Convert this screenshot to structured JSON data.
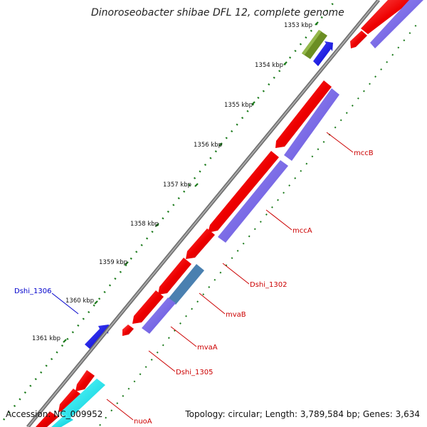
{
  "title": "Dinoroseobacter shibae DFL 12, complete genome",
  "footer": {
    "accession": "Accession: NC_009952",
    "summary": "Topology: circular; Length: 3,789,584 bp; Genes: 3,634"
  },
  "ticks": [
    "1353 kbp",
    "1354 kbp",
    "1355 kbp",
    "1356 kbp",
    "1357 kbp",
    "1358 kbp",
    "1359 kbp",
    "1360 kbp",
    "1361 kbp"
  ],
  "genes": [
    "mccB",
    "mccA",
    "Dshi_1302",
    "mvaB",
    "mvaA",
    "Dshi_1305",
    "nuoA",
    "Dshi_1306"
  ],
  "colors": {
    "backbone": "#808080",
    "forward_cds": "#0000ff",
    "reverse_cds": "#ff0000",
    "gene_track": "#7b68ee",
    "tick_marks": "#1a7a1a",
    "label_red": "#cc0000",
    "label_blue": "#0000cc"
  }
}
